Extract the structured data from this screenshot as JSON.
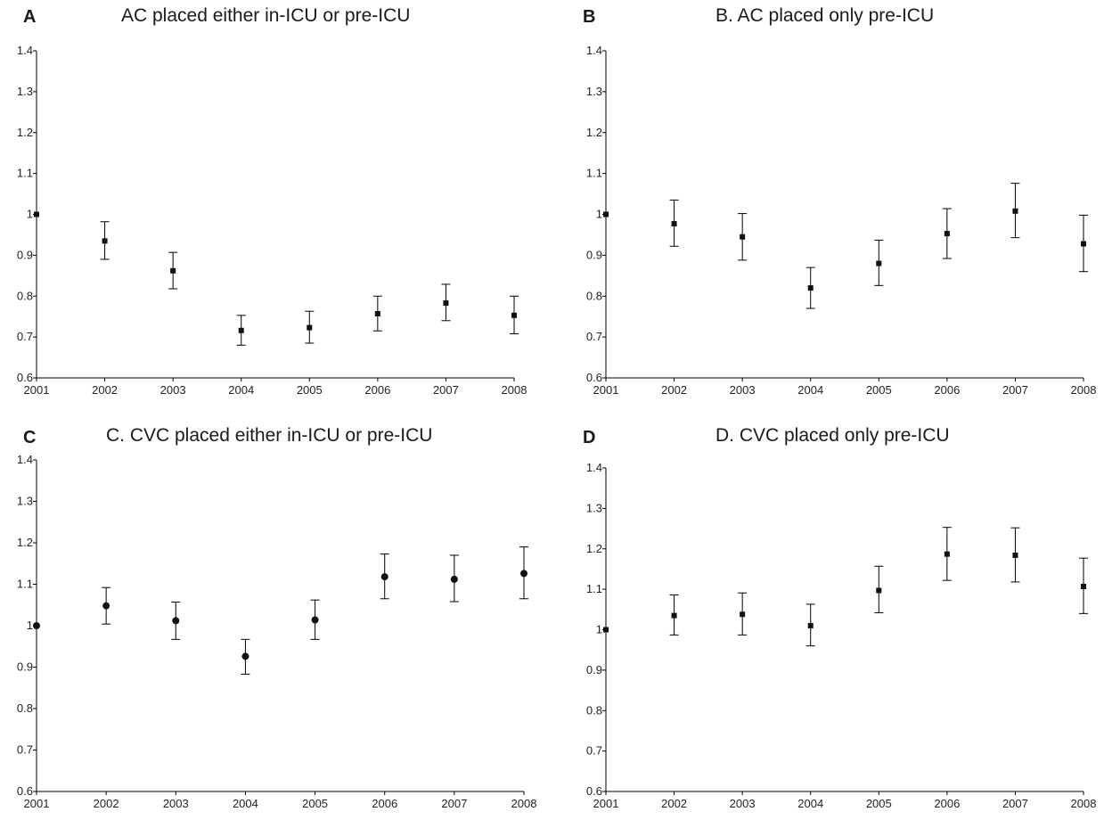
{
  "chart_data": [
    {
      "type": "scatter",
      "panel_letter": "A",
      "title": "AC placed either in-ICU or pre-ICU",
      "x": [
        "2001",
        "2002",
        "2003",
        "2004",
        "2005",
        "2006",
        "2007",
        "2008"
      ],
      "y_ticks": [
        "0.6",
        "0.7",
        "0.8",
        "0.9",
        "1",
        "1.1",
        "1.2",
        "1.3",
        "1.4"
      ],
      "ylim": [
        0.6,
        1.4
      ],
      "marker": "square",
      "series": [
        {
          "values": [
            1.0,
            0.935,
            0.862,
            0.716,
            0.723,
            0.757,
            0.783,
            0.753
          ],
          "lower": [
            1.0,
            0.89,
            0.818,
            0.68,
            0.685,
            0.715,
            0.74,
            0.708
          ],
          "upper": [
            1.0,
            0.982,
            0.907,
            0.753,
            0.763,
            0.8,
            0.829,
            0.8
          ]
        }
      ]
    },
    {
      "type": "scatter",
      "panel_letter": "B",
      "title": "B. AC placed only pre-ICU",
      "x": [
        "2001",
        "2002",
        "2003",
        "2004",
        "2005",
        "2006",
        "2007",
        "2008"
      ],
      "y_ticks": [
        "0.6",
        "0.7",
        "0.8",
        "0.9",
        "1",
        "1.1",
        "1.2",
        "1.3",
        "1.4"
      ],
      "ylim": [
        0.6,
        1.4
      ],
      "marker": "square",
      "series": [
        {
          "values": [
            1.0,
            0.977,
            0.945,
            0.82,
            0.88,
            0.953,
            1.008,
            0.928
          ],
          "lower": [
            1.0,
            0.922,
            0.888,
            0.77,
            0.826,
            0.892,
            0.943,
            0.86
          ],
          "upper": [
            1.0,
            1.035,
            1.002,
            0.87,
            0.937,
            1.014,
            1.076,
            0.998
          ]
        }
      ]
    },
    {
      "type": "scatter",
      "panel_letter": "C",
      "title": "C. CVC placed either in-ICU or pre-ICU",
      "x": [
        "2001",
        "2002",
        "2003",
        "2004",
        "2005",
        "2006",
        "2007",
        "2008"
      ],
      "y_ticks": [
        "0.6",
        "0.7",
        "0.8",
        "0.9",
        "1",
        "1.1",
        "1.2",
        "1.3",
        "1.4"
      ],
      "ylim": [
        0.6,
        1.4
      ],
      "marker": "circle",
      "series": [
        {
          "values": [
            1.0,
            1.048,
            1.012,
            0.926,
            1.014,
            1.118,
            1.112,
            1.126
          ],
          "lower": [
            1.0,
            1.004,
            0.967,
            0.883,
            0.967,
            1.065,
            1.058,
            1.065
          ],
          "upper": [
            1.0,
            1.092,
            1.057,
            0.967,
            1.062,
            1.173,
            1.17,
            1.19
          ]
        }
      ]
    },
    {
      "type": "scatter",
      "panel_letter": "D",
      "title": "D. CVC placed only pre-ICU",
      "x": [
        "2001",
        "2002",
        "2003",
        "2004",
        "2005",
        "2006",
        "2007",
        "2008"
      ],
      "y_ticks": [
        "0.6",
        "0.7",
        "0.8",
        "0.9",
        "1",
        "1.1",
        "1.2",
        "1.3",
        "1.4"
      ],
      "ylim": [
        0.6,
        1.4
      ],
      "marker": "square",
      "series": [
        {
          "values": [
            1.0,
            1.035,
            1.038,
            1.01,
            1.097,
            1.187,
            1.184,
            1.107
          ],
          "lower": [
            1.0,
            0.987,
            0.987,
            0.96,
            1.042,
            1.122,
            1.118,
            1.04
          ],
          "upper": [
            1.0,
            1.086,
            1.091,
            1.063,
            1.157,
            1.253,
            1.252,
            1.177
          ]
        }
      ]
    }
  ]
}
